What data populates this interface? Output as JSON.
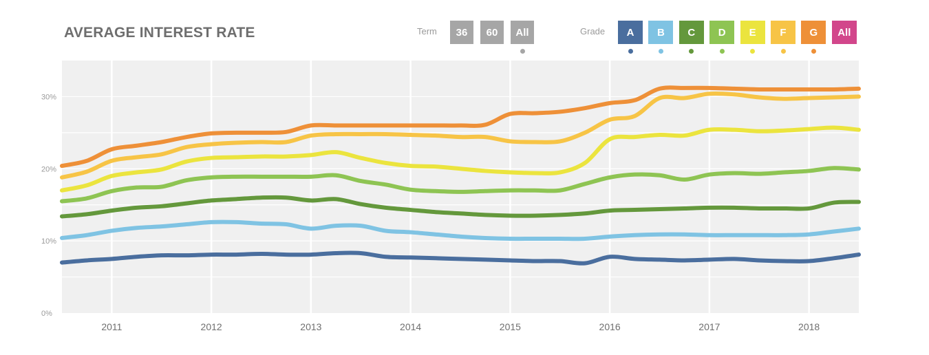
{
  "header": {
    "title": "AVERAGE INTEREST RATE",
    "term_label": "Term",
    "grade_label": "Grade"
  },
  "term_buttons": [
    {
      "label": "36",
      "color": "#a6a6a6",
      "selected": false
    },
    {
      "label": "60",
      "color": "#a6a6a6",
      "selected": false
    },
    {
      "label": "All",
      "color": "#a6a6a6",
      "selected": true
    }
  ],
  "grade_buttons": [
    {
      "label": "A",
      "color": "#4a6e9e",
      "selected": true
    },
    {
      "label": "B",
      "color": "#7fc3e3",
      "selected": true
    },
    {
      "label": "C",
      "color": "#64983c",
      "selected": true
    },
    {
      "label": "D",
      "color": "#8ec453",
      "selected": true
    },
    {
      "label": "E",
      "color": "#ebe43e",
      "selected": true
    },
    {
      "label": "F",
      "color": "#f7c446",
      "selected": true
    },
    {
      "label": "G",
      "color": "#ee9038",
      "selected": true
    },
    {
      "label": "All",
      "color": "#d2468b",
      "selected": false
    }
  ],
  "chart_data": {
    "type": "line",
    "title": "AVERAGE INTEREST RATE",
    "xlabel": "",
    "ylabel": "",
    "x_tick_labels": [
      "2011",
      "2012",
      "2013",
      "2014",
      "2015",
      "2016",
      "2017",
      "2018"
    ],
    "y_tick_labels": [
      "0%",
      "10%",
      "20%",
      "30%"
    ],
    "xlim": [
      2010.5,
      2018.5
    ],
    "ylim": [
      0,
      35
    ],
    "grid": true,
    "legend": "none",
    "x": [
      2010.5,
      2010.75,
      2011.0,
      2011.25,
      2011.5,
      2011.75,
      2012.0,
      2012.25,
      2012.5,
      2012.75,
      2013.0,
      2013.25,
      2013.5,
      2013.75,
      2014.0,
      2014.25,
      2014.5,
      2014.75,
      2015.0,
      2015.25,
      2015.5,
      2015.75,
      2016.0,
      2016.25,
      2016.5,
      2016.75,
      2017.0,
      2017.25,
      2017.5,
      2017.75,
      2018.0,
      2018.25,
      2018.5
    ],
    "series": [
      {
        "name": "A",
        "color": "#4a6e9e",
        "values": [
          7.0,
          7.3,
          7.5,
          7.8,
          8.0,
          8.0,
          8.1,
          8.1,
          8.2,
          8.1,
          8.1,
          8.3,
          8.3,
          7.8,
          7.7,
          7.6,
          7.5,
          7.4,
          7.3,
          7.2,
          7.2,
          6.9,
          7.8,
          7.5,
          7.4,
          7.3,
          7.4,
          7.5,
          7.3,
          7.2,
          7.2,
          7.6,
          8.1
        ]
      },
      {
        "name": "B",
        "color": "#7fc3e3",
        "values": [
          10.4,
          10.8,
          11.4,
          11.8,
          12.0,
          12.3,
          12.6,
          12.6,
          12.4,
          12.3,
          11.7,
          12.1,
          12.1,
          11.4,
          11.2,
          10.9,
          10.6,
          10.4,
          10.3,
          10.3,
          10.3,
          10.3,
          10.6,
          10.8,
          10.9,
          10.9,
          10.8,
          10.8,
          10.8,
          10.8,
          10.9,
          11.3,
          11.7
        ]
      },
      {
        "name": "C",
        "color": "#64983c",
        "values": [
          13.4,
          13.7,
          14.2,
          14.6,
          14.8,
          15.2,
          15.6,
          15.8,
          16.0,
          16.0,
          15.6,
          15.8,
          15.1,
          14.6,
          14.3,
          14.0,
          13.8,
          13.6,
          13.5,
          13.5,
          13.6,
          13.8,
          14.2,
          14.3,
          14.4,
          14.5,
          14.6,
          14.6,
          14.5,
          14.5,
          14.5,
          15.3,
          15.4
        ]
      },
      {
        "name": "D",
        "color": "#8ec453",
        "values": [
          15.5,
          15.9,
          16.9,
          17.4,
          17.5,
          18.4,
          18.8,
          18.9,
          18.9,
          18.9,
          18.9,
          19.1,
          18.3,
          17.8,
          17.1,
          16.9,
          16.8,
          16.9,
          17.0,
          17.0,
          17.0,
          17.9,
          18.8,
          19.2,
          19.1,
          18.5,
          19.2,
          19.4,
          19.3,
          19.5,
          19.7,
          20.1,
          19.9
        ]
      },
      {
        "name": "E",
        "color": "#ebe43e",
        "values": [
          17.0,
          17.7,
          19.0,
          19.5,
          19.9,
          21.0,
          21.5,
          21.6,
          21.7,
          21.7,
          21.9,
          22.3,
          21.5,
          20.8,
          20.4,
          20.3,
          20.0,
          19.7,
          19.5,
          19.4,
          19.5,
          20.8,
          24.1,
          24.4,
          24.7,
          24.6,
          25.4,
          25.4,
          25.2,
          25.3,
          25.5,
          25.7,
          25.4
        ]
      },
      {
        "name": "F",
        "color": "#f7c446",
        "values": [
          18.8,
          19.6,
          21.1,
          21.6,
          22.0,
          23.0,
          23.4,
          23.6,
          23.7,
          23.7,
          24.6,
          24.8,
          24.8,
          24.8,
          24.7,
          24.6,
          24.4,
          24.4,
          23.8,
          23.7,
          23.8,
          25.0,
          26.8,
          27.3,
          29.8,
          29.8,
          30.4,
          30.3,
          29.9,
          29.7,
          29.8,
          29.9,
          30.0
        ]
      },
      {
        "name": "G",
        "color": "#ee9038",
        "values": [
          20.4,
          21.1,
          22.7,
          23.2,
          23.7,
          24.4,
          24.9,
          25.0,
          25.0,
          25.1,
          26.0,
          26.0,
          26.0,
          26.0,
          26.0,
          26.0,
          26.0,
          26.1,
          27.6,
          27.7,
          27.9,
          28.4,
          29.1,
          29.5,
          31.1,
          31.2,
          31.2,
          31.1,
          31.0,
          31.0,
          31.0,
          31.0,
          31.1
        ]
      }
    ]
  }
}
